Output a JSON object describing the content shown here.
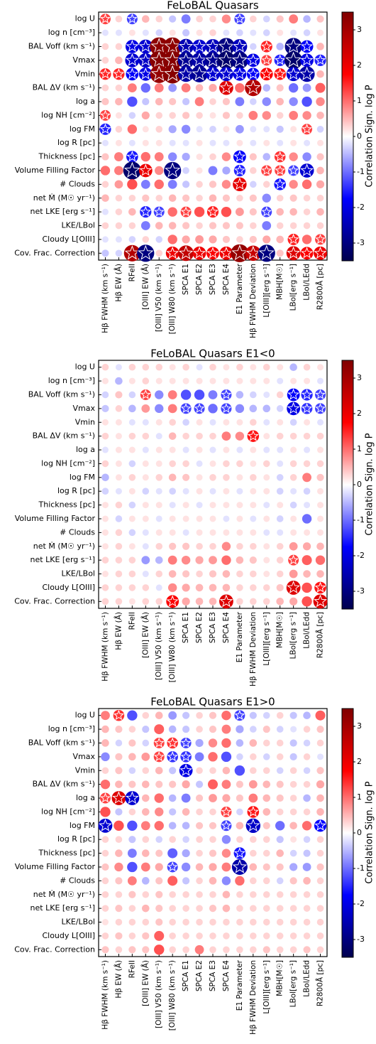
{
  "chart_data": [
    {
      "type": "heatmap",
      "title": "FeLoBAL Quasars",
      "cmap": "seismic",
      "rows": [
        "log U",
        "log n [cm⁻³]",
        "BAL Voff (km s⁻¹)",
        "Vmax",
        "Vmin",
        "BAL ΔV (km s⁻¹)",
        "log a",
        "log NH [cm⁻²]",
        "log FM",
        "log R [pc]",
        "Thickness [pc]",
        "Volume Filling Factor",
        "# Clouds",
        "net Ṁ (M☉ yr⁻¹)",
        "net LKE [erg s⁻¹]",
        "LKE/LBol",
        "Cloudy L[OIII]",
        "Cov. Frac. Correction"
      ],
      "columns": [
        "Hβ FWHM (km s⁻¹)",
        "Hβ EW (Å)",
        "RFeII",
        "[OIII] EW (Å)",
        "[OIII] V50 (km s⁻¹)",
        "[OIII] W80 (km s⁻¹)",
        "SPCA E1",
        "SPCA E2",
        "SPCA E3",
        "SPCA E4",
        "E1 Parameter",
        "Hβ FWHM Deviation",
        "L[OIII][erg s⁻¹]",
        "MBH[M☉]",
        "LBol[erg s⁻¹]",
        "LBol/LEdd",
        "R2800Å [pc]"
      ],
      "values": [
        [
          1.3,
          0.3,
          -1.3,
          0.5,
          0.3,
          -0.4,
          -0.9,
          0.3,
          0.3,
          0.8,
          -1.3,
          0.3,
          -0.3,
          0.4,
          0.9,
          -0.5,
          0.4
        ],
        [
          -0.2,
          -0.2,
          0.2,
          -0.2,
          -0.3,
          0.2,
          -0.4,
          0.2,
          0.3,
          -0.2,
          -0.3,
          -0.2,
          -0.3,
          0.2,
          -0.2,
          -0.3,
          0.2
        ],
        [
          0.3,
          0.3,
          -2.0,
          -2.2,
          3.3,
          3.3,
          -2.5,
          -2.2,
          -2.4,
          -3.0,
          -2.4,
          -0.3,
          1.5,
          -0.5,
          -3.0,
          -1.8,
          0.5
        ],
        [
          0.3,
          0.5,
          -2.2,
          -2.3,
          3.4,
          3.4,
          -2.8,
          -2.6,
          -2.8,
          -3.2,
          -3.0,
          -2.0,
          1.3,
          -1.5,
          -3.2,
          -2.0,
          -1.5
        ],
        [
          1.5,
          1.5,
          -1.8,
          -2.0,
          3.2,
          3.4,
          -2.6,
          -2.8,
          -2.2,
          -2.2,
          -2.0,
          -1.8,
          1.8,
          1.6,
          -2.2,
          -2.6,
          0.5
        ],
        [
          0.3,
          0.3,
          0.9,
          -1.0,
          0.9,
          -0.7,
          0.9,
          0.5,
          0.6,
          2.2,
          1.0,
          2.8,
          -0.5,
          0.4,
          -1.0,
          -0.7,
          1.1
        ],
        [
          0.4,
          0.5,
          -1.2,
          -0.4,
          0.5,
          0.4,
          -0.4,
          0.9,
          0.3,
          0.4,
          -0.9,
          -0.3,
          -0.8,
          0.5,
          -0.8,
          -1.2,
          0.8
        ],
        [
          1.3,
          0.2,
          -0.3,
          0.6,
          0.3,
          0.3,
          0.4,
          0.3,
          0.2,
          0.4,
          0.3,
          0.9,
          0.8,
          0.3,
          0.9,
          0.8,
          0.5
        ],
        [
          -1.5,
          0.3,
          1.0,
          0.2,
          0.3,
          -0.6,
          -0.8,
          -0.2,
          -0.3,
          0.2,
          -0.7,
          -0.2,
          -0.2,
          -0.4,
          0.2,
          1.3,
          -0.3
        ],
        [
          -0.2,
          0.2,
          -0.2,
          0.2,
          0.2,
          -0.2,
          -0.2,
          0.2,
          -0.2,
          -0.2,
          0.2,
          -0.2,
          0.2,
          -0.2,
          0.2,
          -0.2,
          0.2
        ],
        [
          0.4,
          0.9,
          -1.6,
          1.0,
          0.9,
          -0.8,
          -0.6,
          0.2,
          0.3,
          0.8,
          -1.8,
          0.4,
          -0.5,
          1.4,
          0.8,
          -0.8,
          0.4
        ],
        [
          1.0,
          0.9,
          -3.2,
          2.0,
          0.8,
          -3.0,
          -0.3,
          0.2,
          -0.9,
          -0.6,
          -1.5,
          0.3,
          1.3,
          1.3,
          -1.3,
          -2.2,
          0.5
        ],
        [
          0.3,
          0.7,
          1.2,
          -0.9,
          1.0,
          -0.9,
          -0.4,
          0.3,
          0.4,
          0.8,
          2.1,
          -0.3,
          0.3,
          -1.6,
          0.8,
          1.0,
          0.6
        ],
        [
          0.5,
          0.3,
          0.3,
          0.4,
          0.3,
          0.5,
          0.4,
          0.3,
          0.5,
          0.4,
          0.3,
          0.4,
          -0.8,
          0.3,
          0.4,
          0.3,
          0.3
        ],
        [
          -0.2,
          0.3,
          0.5,
          -1.5,
          -1.3,
          1.0,
          1.3,
          1.2,
          1.5,
          1.2,
          0.7,
          0.4,
          -1.3,
          0.5,
          0.5,
          0.3,
          0.5
        ],
        [
          0.3,
          0.3,
          0.3,
          -0.9,
          0.5,
          0.5,
          0.4,
          0.3,
          0.4,
          0.4,
          0.4,
          0.3,
          -0.9,
          0.3,
          0.3,
          0.3,
          0.3
        ],
        [
          -0.2,
          -0.2,
          -0.3,
          0.3,
          -0.3,
          1.0,
          0.6,
          0.7,
          0.6,
          0.4,
          0.3,
          0.4,
          0.6,
          0.5,
          1.5,
          1.0,
          1.3
        ],
        [
          -0.4,
          -0.3,
          2.8,
          -3.0,
          0.3,
          2.0,
          2.6,
          2.0,
          1.8,
          2.0,
          3.2,
          2.5,
          -3.0,
          0.4,
          2.2,
          1.8,
          2.0
        ]
      ],
      "colorbar": {
        "label": "Correlation Sign. log P",
        "lim": [
          -3.5,
          3.5
        ],
        "ticks": [
          -3,
          -2,
          -1,
          0,
          1,
          2,
          3
        ]
      }
    },
    {
      "type": "heatmap",
      "title": "FeLoBAL Quasars E1<0",
      "cmap": "seismic",
      "rows": [
        "log U",
        "log n [cm⁻³]",
        "BAL Voff (km s⁻¹)",
        "Vmax",
        "Vmin",
        "BAL ΔV (km s⁻¹)",
        "log a",
        "log NH [cm⁻²]",
        "log FM",
        "log R [pc]",
        "Thickness [pc]",
        "Volume Filling Factor",
        "# Clouds",
        "net Ṁ (M☉ yr⁻¹)",
        "net LKE [erg s⁻¹]",
        "LKE/LBol",
        "Cloudy L[OIII]",
        "Cov. Frac. Correction"
      ],
      "columns": [
        "Hβ FWHM (km s⁻¹)",
        "Hβ EW (Å)",
        "RFeII",
        "[OIII] EW (Å)",
        "[OIII] V50 (km s⁻¹)",
        "[OIII] W80 (km s⁻¹)",
        "SPCA E1",
        "SPCA E2",
        "SPCA E3",
        "SPCA E4",
        "E1 Parameter",
        "Hβ FWHM Deviation",
        "L[OIII][erg s⁻¹]",
        "MBH[M☉]",
        "LBol[erg s⁻¹]",
        "LBol/LEdd",
        "R2800Å [pc]"
      ],
      "values": [
        [
          0.3,
          -0.2,
          0.3,
          0.3,
          0.3,
          0.2,
          0.3,
          -0.2,
          0.3,
          0.2,
          0.3,
          0.2,
          0.3,
          0.2,
          -0.5,
          0.3,
          0.2
        ],
        [
          0.2,
          -0.5,
          0.2,
          0.3,
          0.2,
          0.2,
          0.2,
          0.2,
          0.2,
          0.2,
          0.2,
          0.2,
          0.2,
          -0.2,
          0.2,
          0.2,
          -0.2
        ],
        [
          -0.3,
          0.4,
          -0.3,
          1.3,
          -0.8,
          0.9,
          -1.2,
          -1.2,
          -0.9,
          -1.3,
          -0.5,
          -0.3,
          -0.2,
          0.3,
          -1.8,
          -1.5,
          -1.3
        ],
        [
          -0.4,
          0.3,
          -0.5,
          0.7,
          -0.8,
          0.9,
          -1.3,
          -1.3,
          -1.0,
          -1.3,
          -0.8,
          -0.5,
          -0.5,
          -0.3,
          -2.0,
          -1.4,
          -1.3
        ],
        [
          0.2,
          0.2,
          -0.2,
          -0.2,
          0.2,
          0.3,
          -0.3,
          0.2,
          -0.2,
          0.2,
          0.2,
          0.3,
          -0.2,
          0.2,
          -0.3,
          0.2,
          -0.2
        ],
        [
          0.3,
          0.2,
          0.3,
          0.3,
          -0.2,
          0.5,
          0.3,
          0.3,
          0.3,
          0.9,
          0.8,
          1.6,
          0.2,
          0.3,
          0.3,
          0.3,
          0.3
        ],
        [
          -0.2,
          0.2,
          0.2,
          -0.2,
          0.2,
          0.2,
          -0.2,
          0.2,
          -0.2,
          0.2,
          -0.2,
          0.2,
          -0.2,
          -0.2,
          0.2,
          -0.2,
          0.2
        ],
        [
          0.3,
          0.2,
          -0.3,
          0.2,
          0.2,
          0.3,
          0.3,
          -0.2,
          0.2,
          0.3,
          0.3,
          0.2,
          0.3,
          -0.2,
          0.3,
          0.3,
          0.3
        ],
        [
          -0.5,
          0.2,
          0.3,
          0.2,
          0.3,
          0.5,
          0.4,
          0.2,
          0.3,
          0.3,
          0.2,
          0.3,
          0.2,
          -0.3,
          0.3,
          0.9,
          0.4
        ],
        [
          -0.3,
          -0.2,
          0.2,
          -0.3,
          -0.2,
          -0.3,
          -0.2,
          0.2,
          -0.2,
          0.2,
          -0.2,
          0.2,
          0.2,
          -0.3,
          -0.2,
          -0.3,
          0.2
        ],
        [
          0.2,
          0.3,
          -0.3,
          0.2,
          0.2,
          -0.2,
          0.2,
          -0.2,
          0.2,
          0.2,
          0.2,
          0.2,
          -0.2,
          0.2,
          -0.3,
          -0.2,
          0.2
        ],
        [
          0.2,
          -0.3,
          0.2,
          0.2,
          -0.2,
          0.2,
          0.2,
          0.2,
          0.2,
          -0.2,
          0.2,
          -0.2,
          0.2,
          -0.3,
          0.2,
          -1.0,
          0.2
        ],
        [
          0.2,
          0.3,
          -0.3,
          -0.2,
          0.2,
          0.2,
          -0.2,
          0.2,
          0.2,
          0.2,
          0.2,
          0.2,
          -0.2,
          -0.2,
          0.2,
          0.2,
          0.2
        ],
        [
          0.2,
          0.3,
          0.2,
          -0.2,
          0.3,
          0.4,
          0.4,
          0.3,
          0.3,
          0.8,
          0.3,
          0.3,
          0.2,
          0.3,
          0.7,
          0.6,
          0.5
        ],
        [
          0.3,
          0.3,
          0.3,
          -0.7,
          -0.5,
          0.9,
          0.8,
          0.6,
          0.7,
          1.0,
          0.5,
          0.4,
          0.2,
          0.3,
          1.3,
          1.1,
          1.0
        ],
        [
          0.2,
          0.3,
          0.3,
          -0.2,
          0.3,
          0.5,
          0.4,
          0.3,
          0.4,
          0.5,
          0.3,
          0.3,
          0.2,
          0.3,
          0.7,
          0.5,
          0.5
        ],
        [
          0.3,
          0.3,
          0.3,
          0.3,
          -0.2,
          0.8,
          0.6,
          0.5,
          0.5,
          0.5,
          0.3,
          0.3,
          0.3,
          0.4,
          2.2,
          1.2,
          1.6
        ],
        [
          0.3,
          0.3,
          0.2,
          0.3,
          0.3,
          1.8,
          0.6,
          0.5,
          0.5,
          2.2,
          0.3,
          0.3,
          0.3,
          0.5,
          0.6,
          1.2,
          2.2
        ]
      ],
      "colorbar": {
        "label": "Correlation Sign. log P",
        "lim": [
          -3.5,
          3.5
        ],
        "ticks": [
          -3,
          -2,
          -1,
          0,
          1,
          2,
          3
        ]
      }
    },
    {
      "type": "heatmap",
      "title": "FeLoBAL Quasars E1>0",
      "cmap": "seismic",
      "rows": [
        "log U",
        "log n [cm⁻³]",
        "BAL Voff (km s⁻¹)",
        "Vmax",
        "Vmin",
        "BAL ΔV (km s⁻¹)",
        "log a",
        "log NH [cm⁻²]",
        "log FM",
        "log R [pc]",
        "Thickness [pc]",
        "Volume Filling Factor",
        "# Clouds",
        "net Ṁ (M☉ yr⁻¹)",
        "net LKE [erg s⁻¹]",
        "LKE/LBol",
        "Cloudy L[OIII]",
        "Cov. Frac. Correction"
      ],
      "columns": [
        "Hβ FWHM (km s⁻¹)",
        "Hβ EW (Å)",
        "RFeII",
        "[OIII] EW (Å)",
        "[OIII] V50 (km s⁻¹)",
        "[OIII] W80 (km s⁻¹)",
        "SPCA E1",
        "SPCA E2",
        "SPCA E3",
        "SPCA E4",
        "E1 Parameter",
        "Hβ FWHM Deviation",
        "L[OIII][erg s⁻¹]",
        "MBH[M☉]",
        "LBol[erg s⁻¹]",
        "LBol/LEdd",
        "R2800Å [pc]"
      ],
      "values": [
        [
          0.9,
          1.4,
          -1.2,
          0.3,
          0.5,
          -0.7,
          -0.4,
          0.3,
          0.4,
          1.0,
          -1.3,
          -0.4,
          -0.3,
          0.3,
          -0.4,
          -0.5,
          1.1
        ],
        [
          0.5,
          0.4,
          0.3,
          -0.4,
          1.1,
          -0.5,
          -0.4,
          0.3,
          0.4,
          0.9,
          -0.6,
          -0.3,
          0.4,
          -0.3,
          -0.2,
          0.3,
          0.4
        ],
        [
          0.5,
          -0.3,
          0.4,
          -0.3,
          1.3,
          1.4,
          -1.3,
          -0.6,
          0.8,
          1.0,
          -0.5,
          0.5,
          0.3,
          0.3,
          -0.4,
          -0.3,
          0.3
        ],
        [
          -0.8,
          0.4,
          0.5,
          0.7,
          1.3,
          -1.4,
          -1.4,
          -0.9,
          1.0,
          -1.2,
          -0.3,
          0.3,
          -0.3,
          0.3,
          -0.4,
          0.3,
          -0.2
        ],
        [
          0.3,
          0.4,
          -0.3,
          0.3,
          0.5,
          -0.4,
          -2.0,
          0.3,
          0.3,
          0.5,
          -1.2,
          0.3,
          0.3,
          -0.3,
          0.3,
          -0.3,
          0.4
        ],
        [
          1.0,
          0.5,
          0.4,
          0.5,
          0.4,
          0.4,
          0.6,
          -0.4,
          1.1,
          0.9,
          0.4,
          0.7,
          0.5,
          0.4,
          0.3,
          0.3,
          0.6
        ],
        [
          1.3,
          2.2,
          -2.2,
          0.5,
          1.0,
          -0.5,
          -0.9,
          0.4,
          0.7,
          0.6,
          0.4,
          0.9,
          0.5,
          0.4,
          0.3,
          -0.5,
          0.5
        ],
        [
          1.2,
          -0.4,
          0.3,
          0.5,
          0.8,
          -0.4,
          0.5,
          0.3,
          0.3,
          1.3,
          -0.3,
          1.6,
          0.5,
          0.3,
          0.3,
          0.3,
          0.5
        ],
        [
          -2.2,
          1.2,
          -1.2,
          0.9,
          1.0,
          -0.5,
          -0.5,
          0.4,
          0.4,
          -1.3,
          0.5,
          -2.3,
          0.4,
          -1.0,
          0.5,
          1.0,
          -1.7
        ],
        [
          0.3,
          0.3,
          -0.4,
          0.3,
          -0.3,
          0.3,
          -0.3,
          0.3,
          0.3,
          -0.8,
          0.3,
          0.3,
          0.3,
          -0.4,
          0.2,
          -0.3,
          0.3
        ],
        [
          0.3,
          0.5,
          -0.9,
          0.5,
          0.4,
          -1.1,
          -0.6,
          0.3,
          0.4,
          0.8,
          -1.6,
          0.3,
          0.3,
          0.5,
          -0.3,
          -0.4,
          0.3
        ],
        [
          0.4,
          0.8,
          -1.2,
          0.9,
          0.6,
          -1.3,
          -0.8,
          0.5,
          0.6,
          0.9,
          -2.6,
          0.5,
          0.4,
          0.4,
          -0.6,
          -0.7,
          0.4
        ],
        [
          0.3,
          0.4,
          0.9,
          -0.5,
          0.4,
          1.1,
          -0.4,
          0.3,
          0.5,
          -0.8,
          1.0,
          0.3,
          0.3,
          -0.3,
          0.4,
          0.5,
          0.3
        ],
        [
          0.3,
          0.3,
          0.4,
          0.3,
          0.4,
          0.3,
          0.3,
          0.3,
          0.3,
          0.5,
          0.3,
          0.3,
          0.3,
          0.3,
          0.3,
          0.3,
          0.3
        ],
        [
          0.3,
          0.4,
          0.3,
          0.5,
          0.4,
          0.3,
          0.3,
          0.3,
          0.4,
          0.5,
          0.3,
          0.3,
          0.3,
          0.3,
          0.3,
          0.3,
          0.3
        ],
        [
          0.2,
          0.3,
          0.3,
          0.3,
          0.4,
          0.3,
          0.3,
          0.3,
          0.3,
          0.3,
          0.3,
          0.3,
          0.3,
          0.3,
          0.3,
          0.3,
          0.3
        ],
        [
          0.3,
          0.4,
          0.3,
          0.4,
          1.1,
          0.3,
          0.3,
          0.3,
          0.3,
          0.3,
          0.3,
          0.3,
          0.3,
          0.3,
          0.3,
          0.3,
          0.3
        ],
        [
          0.4,
          0.3,
          0.4,
          0.4,
          1.2,
          0.3,
          0.3,
          0.9,
          0.3,
          0.3,
          0.3,
          0.3,
          0.4,
          0.3,
          0.3,
          0.4,
          0.3
        ]
      ],
      "colorbar": {
        "label": "Correlation Sign. log P",
        "lim": [
          -3.5,
          3.5
        ],
        "ticks": [
          -3,
          -2,
          -1,
          0,
          1,
          2,
          3
        ]
      }
    }
  ]
}
